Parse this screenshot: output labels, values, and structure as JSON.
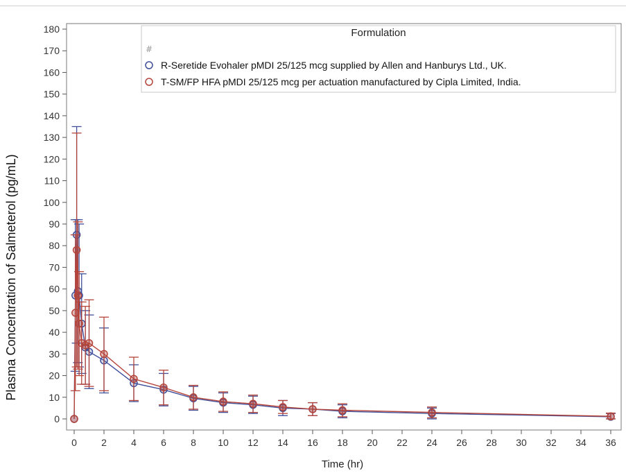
{
  "chart_data": {
    "type": "line",
    "xlabel": "Time (hr)",
    "ylabel": "Plasma Concentration of Salmeterol (pg/mL)",
    "xlim": [
      0,
      36
    ],
    "ylim": [
      0,
      180
    ],
    "x_ticks": [
      0,
      2,
      4,
      6,
      8,
      10,
      12,
      14,
      16,
      18,
      20,
      22,
      24,
      26,
      28,
      30,
      32,
      34,
      36
    ],
    "y_ticks": [
      0,
      10,
      20,
      30,
      40,
      50,
      60,
      70,
      80,
      90,
      100,
      110,
      120,
      130,
      140,
      150,
      160,
      170,
      180
    ],
    "grid": false,
    "legend": {
      "title": "Formulation",
      "placement": "top-right",
      "entries": [
        {
          "marker": "#",
          "label": ""
        },
        {
          "marker": "circle",
          "label": "R-Seretide Evohaler pMDI 25/125 mcg supplied by Allen and Hanburys Ltd., UK."
        },
        {
          "marker": "circle",
          "label": "T-SM/FP HFA pMDI 25/125 mcg per actuation manufactured by Cipla Limited, India."
        }
      ]
    },
    "series": [
      {
        "name": "R-Seretide Evohaler pMDI 25/125 mcg supplied by Allen and Hanburys Ltd., UK.",
        "color": "#3f4f9a",
        "points": [
          {
            "x": 0,
            "y": 0,
            "err": 0
          },
          {
            "x": 0.083,
            "y": 57,
            "err": 35
          },
          {
            "x": 0.167,
            "y": 85,
            "err": 50
          },
          {
            "x": 0.25,
            "y": 59,
            "err": 33
          },
          {
            "x": 0.33,
            "y": 57,
            "err": 33
          },
          {
            "x": 0.5,
            "y": 44,
            "err": 23
          },
          {
            "x": 0.75,
            "y": 33,
            "err": 17
          },
          {
            "x": 1,
            "y": 31,
            "err": 17
          },
          {
            "x": 2,
            "y": 27,
            "err": 15
          },
          {
            "x": 4,
            "y": 16.5,
            "err": 8.5
          },
          {
            "x": 6,
            "y": 13.5,
            "err": 7.5
          },
          {
            "x": 8,
            "y": 9.5,
            "err": 5.5
          },
          {
            "x": 10,
            "y": 7.5,
            "err": 4.5
          },
          {
            "x": 12,
            "y": 6.5,
            "err": 4
          },
          {
            "x": 14,
            "y": 5,
            "err": 3.5
          },
          {
            "x": 16,
            "y": 4.5,
            "err": 3
          },
          {
            "x": 18,
            "y": 3.5,
            "err": 3
          },
          {
            "x": 24,
            "y": 2.5,
            "err": 2.5
          },
          {
            "x": 36,
            "y": 1,
            "err": 1.5
          }
        ]
      },
      {
        "name": "T-SM/FP HFA pMDI 25/125 mcg per actuation manufactured by Cipla Limited, India.",
        "color": "#b5443a",
        "points": [
          {
            "x": 0,
            "y": 0,
            "err": 0
          },
          {
            "x": 0.083,
            "y": 49,
            "err": 36
          },
          {
            "x": 0.167,
            "y": 78,
            "err": 54
          },
          {
            "x": 0.25,
            "y": 57,
            "err": 34
          },
          {
            "x": 0.33,
            "y": 44,
            "err": 24
          },
          {
            "x": 0.5,
            "y": 35,
            "err": 19
          },
          {
            "x": 0.75,
            "y": 34,
            "err": 18
          },
          {
            "x": 1,
            "y": 35,
            "err": 20
          },
          {
            "x": 2,
            "y": 30,
            "err": 17
          },
          {
            "x": 4,
            "y": 18.5,
            "err": 10
          },
          {
            "x": 6,
            "y": 14.5,
            "err": 8
          },
          {
            "x": 8,
            "y": 10,
            "err": 5.5
          },
          {
            "x": 10,
            "y": 8,
            "err": 4.5
          },
          {
            "x": 12,
            "y": 7,
            "err": 4
          },
          {
            "x": 14,
            "y": 5.5,
            "err": 3
          },
          {
            "x": 16,
            "y": 4.5,
            "err": 3
          },
          {
            "x": 18,
            "y": 4,
            "err": 3
          },
          {
            "x": 24,
            "y": 3,
            "err": 2.5
          },
          {
            "x": 36,
            "y": 1.2,
            "err": 1.5
          }
        ]
      }
    ]
  }
}
